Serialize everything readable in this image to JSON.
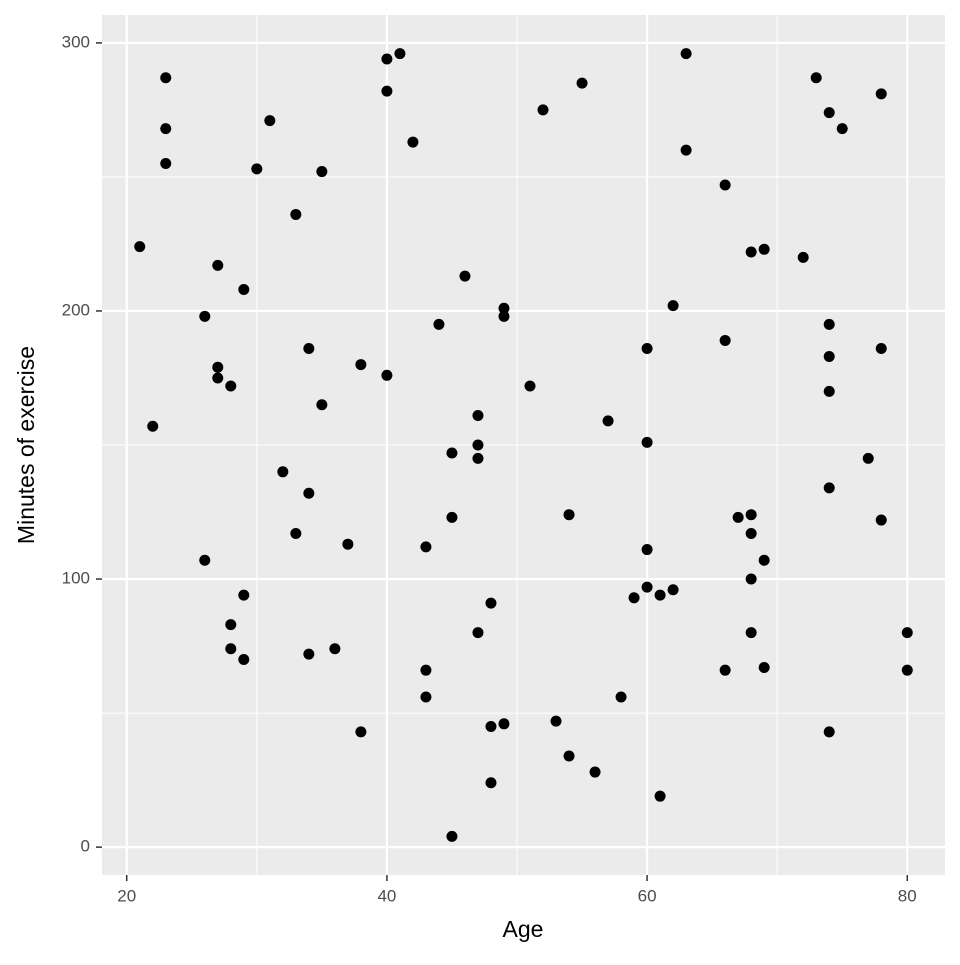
{
  "chart_data": {
    "type": "scatter",
    "x_label": "Age",
    "y_label": "Minutes of exercise",
    "color": "#000000",
    "panel_color": "#ebebeb",
    "grid": true,
    "xlim": [
      18.1,
      82.9
    ],
    "xticks": [
      20,
      40,
      60,
      80
    ],
    "xminor": [
      30,
      50,
      70
    ],
    "ylim": [
      -10.4,
      310.4
    ],
    "yticks": [
      0,
      100,
      200,
      300
    ],
    "yminor": [
      50,
      150,
      250
    ],
    "x": [
      21,
      22,
      23,
      23,
      23,
      26,
      26,
      27,
      27,
      27,
      28,
      28,
      28,
      29,
      29,
      29,
      30,
      31,
      32,
      33,
      33,
      34,
      34,
      34,
      35,
      35,
      36,
      37,
      38,
      38,
      40,
      40,
      40,
      41,
      42,
      43,
      43,
      43,
      44,
      45,
      45,
      45,
      46,
      47,
      47,
      47,
      47,
      48,
      48,
      48,
      49,
      49,
      49,
      51,
      52,
      53,
      54,
      54,
      55,
      56,
      57,
      58,
      59,
      60,
      60,
      60,
      60,
      61,
      61,
      62,
      62,
      63,
      63,
      66,
      66,
      66,
      67,
      68,
      68,
      68,
      68,
      68,
      69,
      69,
      69,
      72,
      73,
      74,
      74,
      74,
      74,
      74,
      74,
      75,
      77,
      78,
      78,
      78,
      80,
      80
    ],
    "y": [
      224,
      157,
      287,
      268,
      255,
      198,
      107,
      217,
      179,
      175,
      172,
      83,
      74,
      208,
      94,
      70,
      253,
      271,
      140,
      236,
      117,
      186,
      132,
      72,
      252,
      165,
      74,
      113,
      180,
      43,
      294,
      282,
      176,
      296,
      263,
      112,
      66,
      56,
      195,
      147,
      123,
      4,
      213,
      161,
      150,
      145,
      80,
      91,
      45,
      24,
      201,
      198,
      46,
      172,
      275,
      47,
      124,
      34,
      285,
      28,
      159,
      56,
      93,
      186,
      151,
      111,
      97,
      94,
      19,
      202,
      96,
      296,
      260,
      247,
      189,
      66,
      123,
      222,
      124,
      117,
      100,
      80,
      223,
      107,
      67,
      220,
      287,
      274,
      195,
      183,
      170,
      134,
      43,
      268,
      145,
      281,
      186,
      122,
      80,
      66
    ]
  }
}
